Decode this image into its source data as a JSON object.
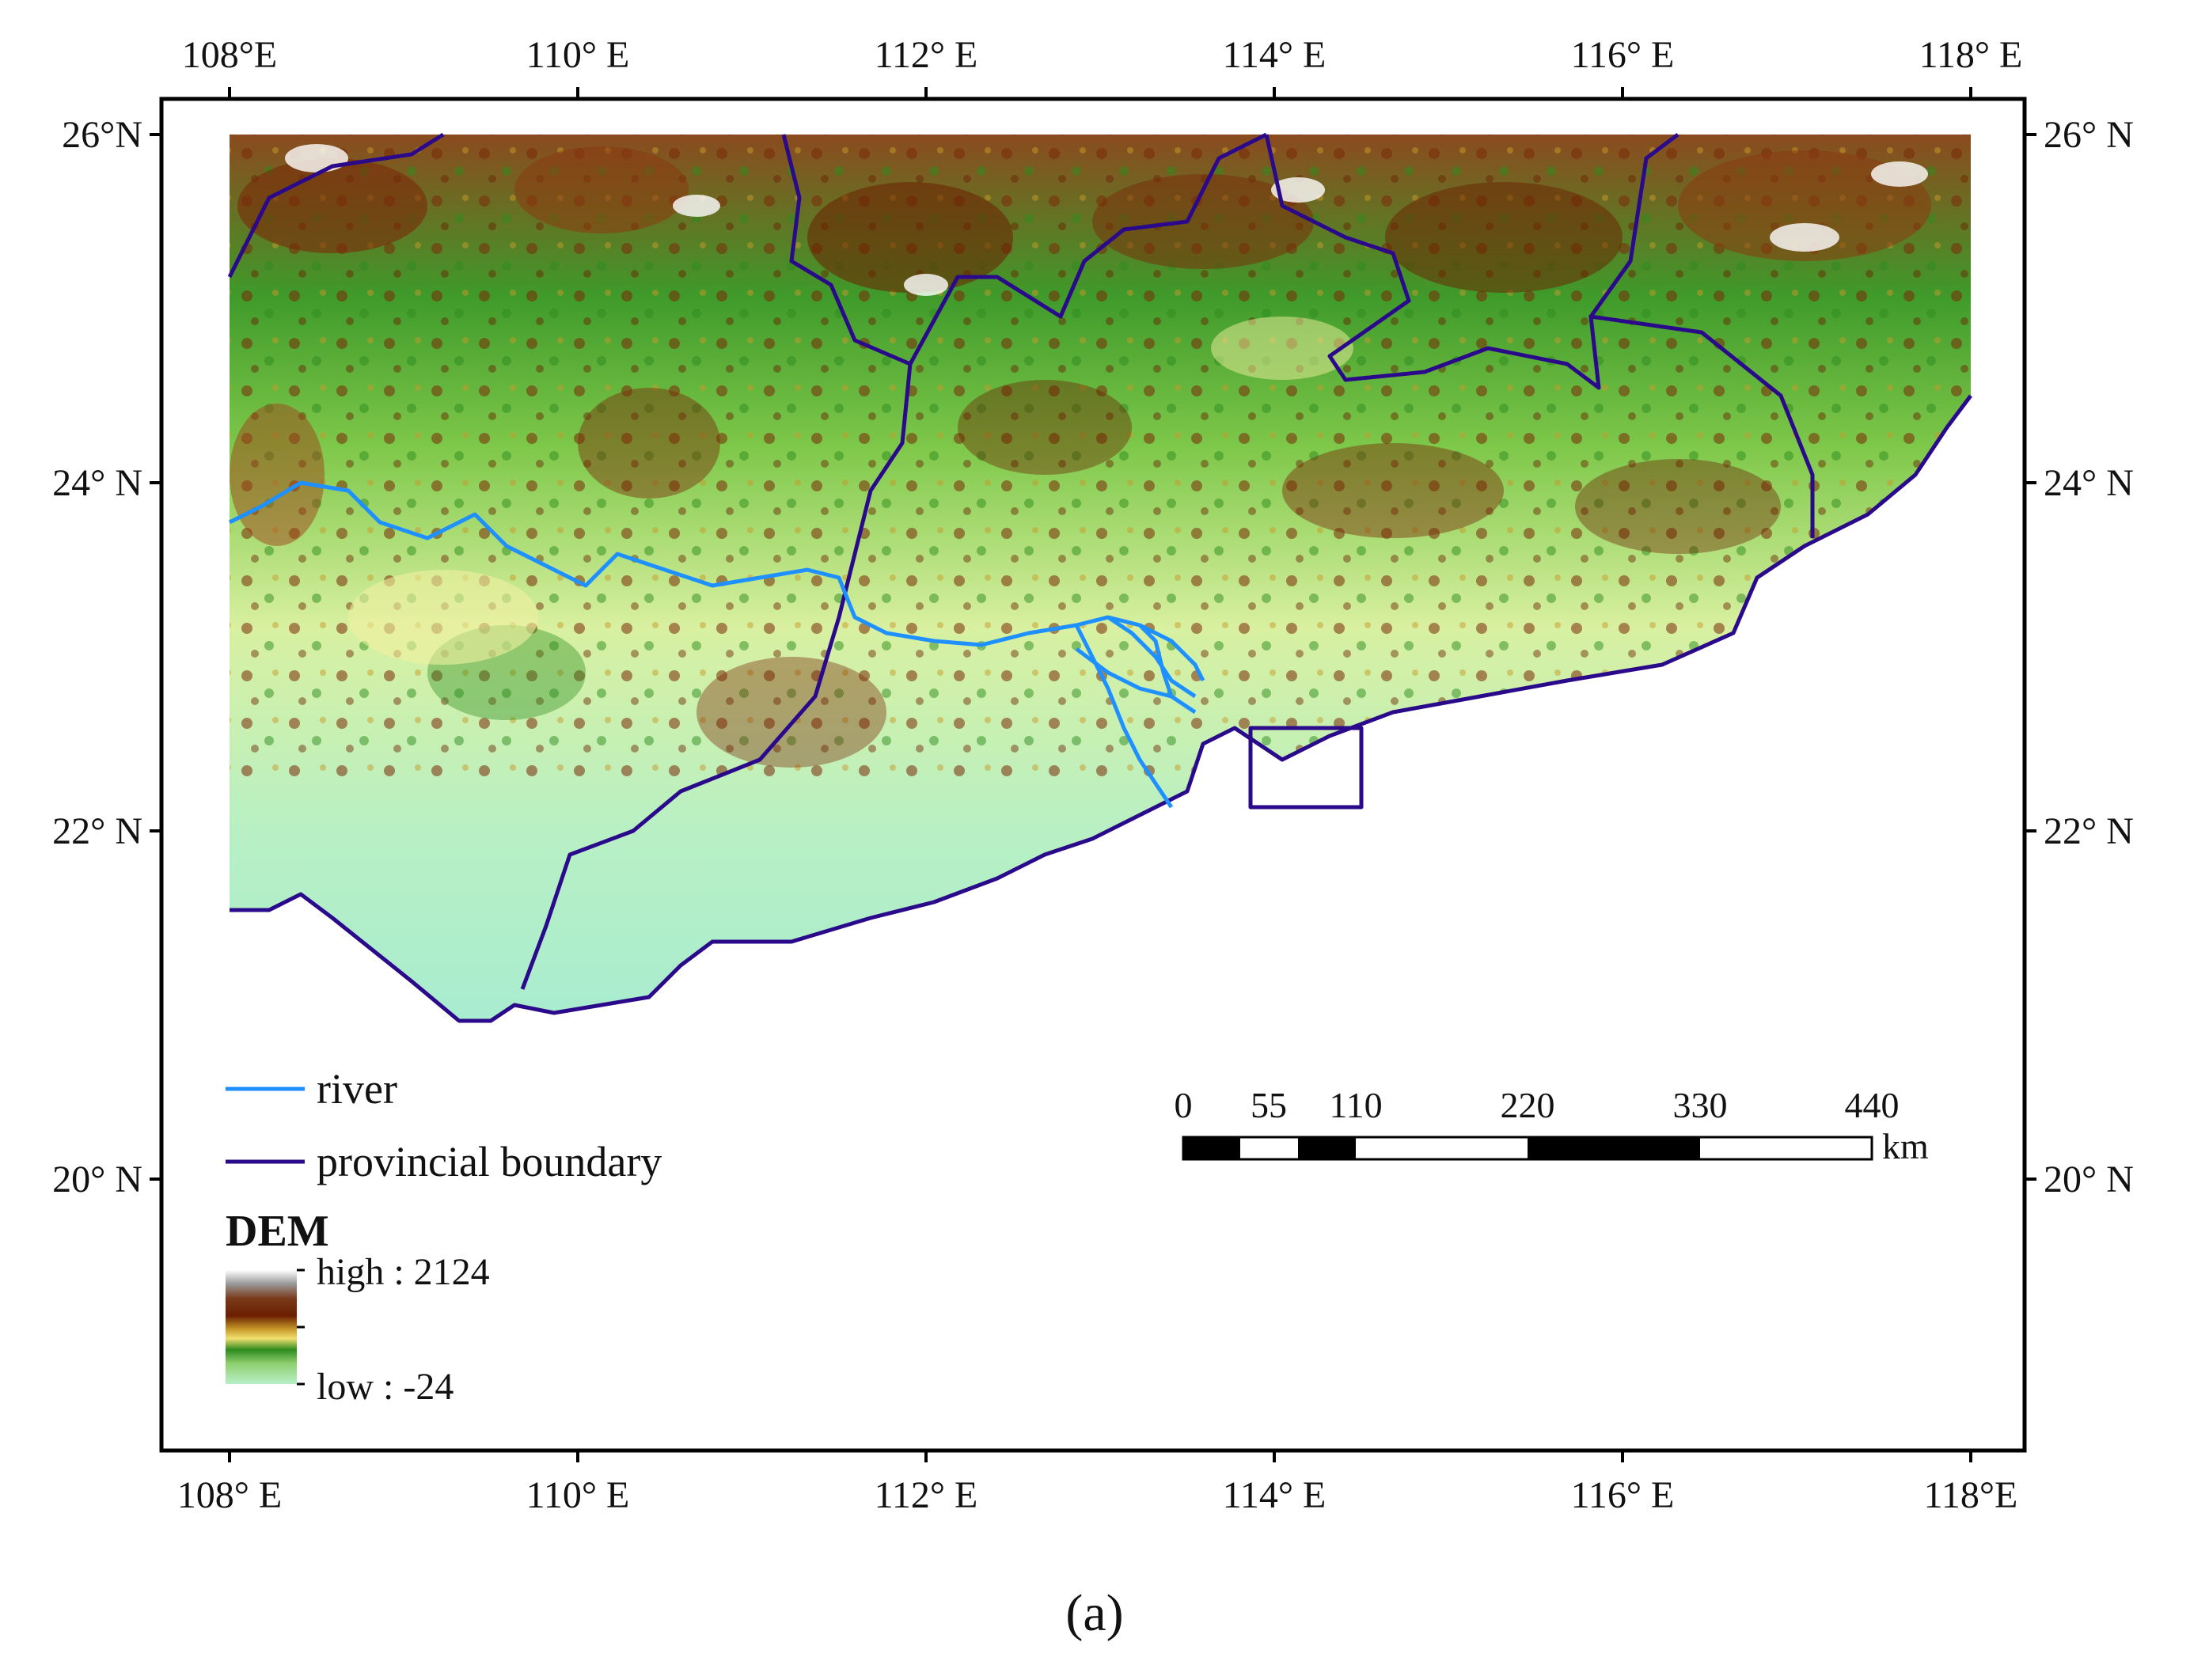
{
  "map": {
    "top_lon_labels": [
      "108°E",
      "110° E",
      "112° E",
      "114° E",
      "116° E",
      "118° E"
    ],
    "bottom_lon_labels": [
      "108° E",
      "110° E",
      "112° E",
      "114° E",
      "116° E",
      "118°E"
    ],
    "left_lat_labels": [
      "26°N",
      "24° N",
      "22° N",
      "20° N"
    ],
    "right_lat_labels": [
      "26° N",
      "24° N",
      "22° N",
      "20° N"
    ],
    "longitudes": [
      108,
      110,
      112,
      114,
      116,
      118
    ],
    "latitudes": [
      26,
      24,
      22,
      20
    ]
  },
  "legend": {
    "river_label": "river",
    "boundary_label": "provincial boundary",
    "river_color": "#1e90ff",
    "boundary_color": "#2a0a8a"
  },
  "dem": {
    "title": "DEM",
    "high_label": "high : 2124",
    "low_label": "low : -24",
    "colors": [
      "#ffffff",
      "#9a9a9a",
      "#8a4a2a",
      "#6b1f00",
      "#c89a2a",
      "#f0e070",
      "#2e8b1e",
      "#8fd070",
      "#b8f0c8"
    ]
  },
  "scale_bar": {
    "labels": [
      "0",
      "55",
      "110",
      "220",
      "330",
      "440"
    ],
    "unit": "km"
  },
  "caption": {
    "text": "(a)"
  }
}
